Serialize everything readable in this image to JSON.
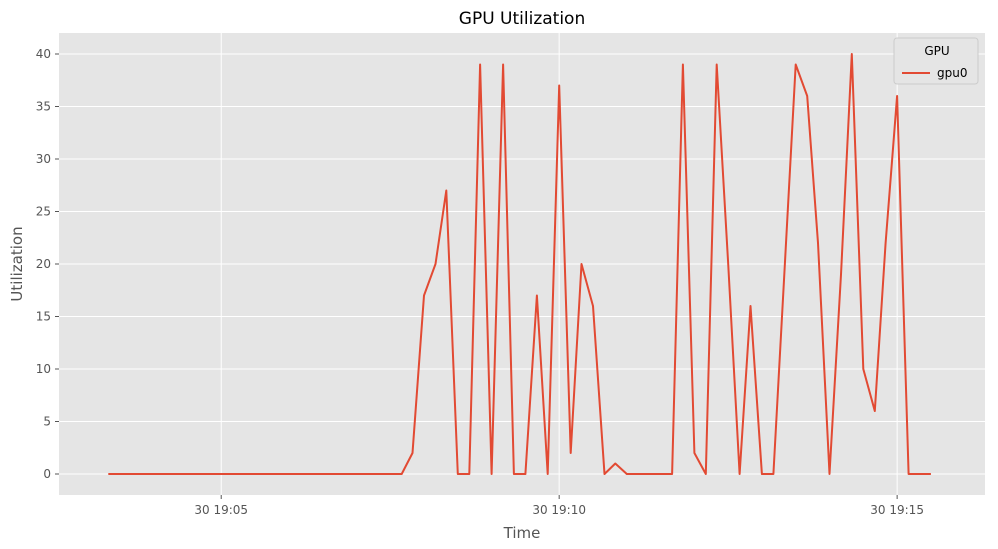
{
  "chart_data": {
    "type": "line",
    "title": "GPU Utilization",
    "xlabel": "Time",
    "ylabel": "Utilization",
    "legend": {
      "title": "GPU",
      "placement": "top-right"
    },
    "x_ticks": [
      "30 19:05",
      "30 19:10",
      "30 19:15"
    ],
    "x_tick_minutes": [
      5,
      10,
      15
    ],
    "y_ticks": [
      0,
      5,
      10,
      15,
      20,
      25,
      30,
      35,
      40
    ],
    "xlim_minutes": [
      2.6,
      16.3
    ],
    "ylim": [
      -2,
      42
    ],
    "grid": true,
    "colors": {
      "line": "#E24A33",
      "plot_bg": "#E5E5E5",
      "grid": "#FFFFFF"
    },
    "series": [
      {
        "name": "gpu0",
        "x_minutes": [
          3.33,
          3.5,
          3.67,
          3.83,
          4.0,
          4.17,
          4.33,
          4.5,
          4.67,
          4.83,
          5.0,
          5.17,
          5.33,
          5.5,
          5.67,
          5.83,
          6.0,
          6.17,
          6.33,
          6.5,
          6.67,
          6.83,
          7.0,
          7.17,
          7.33,
          7.5,
          7.67,
          7.83,
          8.0,
          8.17,
          8.33,
          8.5,
          8.67,
          8.83,
          9.0,
          9.17,
          9.33,
          9.5,
          9.67,
          9.83,
          10.0,
          10.17,
          10.33,
          10.5,
          10.67,
          10.83,
          11.0,
          11.17,
          11.33,
          11.5,
          11.67,
          11.83,
          12.0,
          12.17,
          12.33,
          12.5,
          12.67,
          12.83,
          13.0,
          13.17,
          13.33,
          13.5,
          13.67,
          13.83,
          14.0,
          14.17,
          14.33,
          14.5,
          14.67,
          14.83,
          15.0,
          15.17,
          15.33,
          15.5
        ],
        "values": [
          0,
          0,
          0,
          0,
          0,
          0,
          0,
          0,
          0,
          0,
          0,
          0,
          0,
          0,
          0,
          0,
          0,
          0,
          0,
          0,
          0,
          0,
          0,
          0,
          0,
          0,
          0,
          2,
          17,
          20,
          27,
          0,
          0,
          39,
          0,
          39,
          0,
          0,
          17,
          0,
          37,
          2,
          20,
          16,
          0,
          1,
          0,
          0,
          0,
          0,
          0,
          39,
          2,
          0,
          39,
          20,
          0,
          16,
          0,
          0,
          19,
          39,
          36,
          22,
          0,
          19,
          40,
          10,
          6,
          22,
          36,
          0,
          0,
          0
        ]
      }
    ]
  }
}
